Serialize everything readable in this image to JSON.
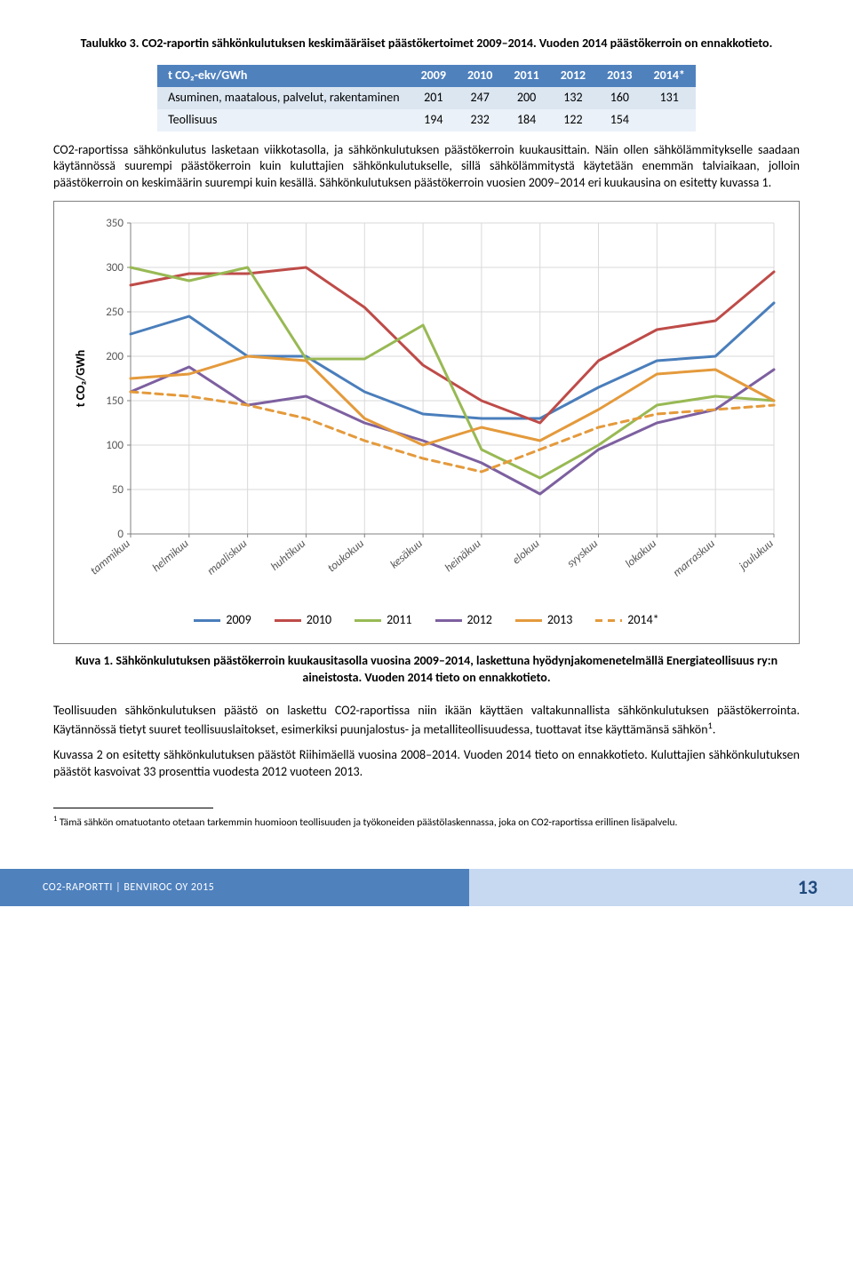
{
  "tableCaption": "Taulukko 3. CO2-raportin sähkönkulutuksen keskimääräiset päästökertoimet 2009–2014. Vuoden 2014 päästökerroin on ennakkotieto.",
  "table": {
    "headerLabel": "t CO₂-ekv/GWh",
    "years": [
      "2009",
      "2010",
      "2011",
      "2012",
      "2013",
      "2014*"
    ],
    "rows": [
      {
        "label": "Asuminen, maatalous, palvelut, rakentaminen",
        "values": [
          "201",
          "247",
          "200",
          "132",
          "160",
          "131"
        ]
      },
      {
        "label": "Teollisuus",
        "values": [
          "194",
          "232",
          "184",
          "122",
          "154",
          ""
        ]
      }
    ]
  },
  "para1": "CO2-raportissa sähkönkulutus lasketaan viikkotasolla, ja sähkönkulutuksen päästökerroin kuukausittain. Näin ollen sähkölämmitykselle saadaan käytännössä suurempi päästökerroin kuin kuluttajien sähkönkulutukselle, sillä sähkölämmitystä käytetään enemmän talviaikaan, jolloin päästökerroin on keskimäärin suurempi kuin kesällä. Sähkönkulutuksen päästökerroin vuosien 2009–2014 eri kuukausina on esitetty kuvassa 1.",
  "chart": {
    "ylabel": "t CO₂/GWh",
    "ylim": [
      0,
      350
    ],
    "ytick_step": 50,
    "yticks": [
      0,
      50,
      100,
      150,
      200,
      250,
      300,
      350
    ],
    "categories": [
      "tammikuu",
      "helmikuu",
      "maaliskuu",
      "huhtikuu",
      "toukokuu",
      "kesäkuu",
      "heinäkuu",
      "elokuu",
      "syyskuu",
      "lokakuu",
      "marraskuu",
      "joulukuu"
    ],
    "grid_color": "#d9d9d9",
    "axis_color": "#808080",
    "background_color": "#ffffff",
    "ylabel_fontsize": 14,
    "tick_fontsize": 13,
    "line_width": 3,
    "series": [
      {
        "name": "2009",
        "color": "#4a7ebb",
        "dash": "",
        "values": [
          225,
          245,
          200,
          200,
          160,
          135,
          130,
          130,
          165,
          195,
          200,
          260
        ]
      },
      {
        "name": "2010",
        "color": "#be4b48",
        "dash": "",
        "values": [
          280,
          293,
          293,
          300,
          255,
          190,
          150,
          125,
          195,
          230,
          240,
          295
        ]
      },
      {
        "name": "2011",
        "color": "#98b954",
        "dash": "",
        "values": [
          300,
          285,
          300,
          197,
          197,
          235,
          95,
          63,
          100,
          145,
          155,
          150
        ]
      },
      {
        "name": "2012",
        "color": "#7d60a0",
        "dash": "",
        "values": [
          160,
          188,
          145,
          155,
          125,
          105,
          80,
          45,
          95,
          125,
          140,
          185
        ]
      },
      {
        "name": "2013",
        "color": "#e49a3c",
        "dash": "",
        "values": [
          175,
          180,
          200,
          195,
          130,
          100,
          120,
          105,
          140,
          180,
          185,
          150
        ]
      },
      {
        "name": "2014*",
        "color": "#e49a3c",
        "dash": "8 6",
        "values": [
          160,
          155,
          145,
          130,
          105,
          85,
          70,
          95,
          120,
          135,
          140,
          145
        ]
      }
    ],
    "legend_labels": [
      "2009",
      "2010",
      "2011",
      "2012",
      "2013",
      "2014*"
    ]
  },
  "figureCaption": "Kuva 1. Sähkönkulutuksen päästökerroin kuukausitasolla vuosina 2009–2014, laskettuna hyödynjakomenetelmällä Energiateollisuus ry:n aineistosta. Vuoden 2014 tieto on ennakkotieto.",
  "para2": "Teollisuuden sähkönkulutuksen päästö on laskettu CO2-raportissa niin ikään käyttäen valtakunnallista sähkönkulutuksen päästökerrointa. Käytännössä tietyt suuret teollisuuslaitokset, esimerkiksi puunjalostus- ja metalliteollisuudessa, tuottavat itse käyttämänsä sähkön",
  "para2_sup": "1",
  "para2_end": ".",
  "para3": "Kuvassa 2 on esitetty sähkönkulutuksen päästöt Riihimäellä vuosina 2008–2014. Vuoden 2014 tieto on ennakkotieto. Kuluttajien sähkönkulutuksen päästöt kasvoivat 33 prosenttia vuodesta 2012 vuoteen 2013.",
  "footnote_num": "1",
  "footnote": " Tämä sähkön omatuotanto otetaan tarkemmin huomioon teollisuuden ja työkoneiden päästölaskennassa, joka on CO2-raportissa erillinen lisäpalvelu.",
  "footer_left": "CO2-RAPORTTI | BENVIROC OY 2015",
  "page_number": "13"
}
